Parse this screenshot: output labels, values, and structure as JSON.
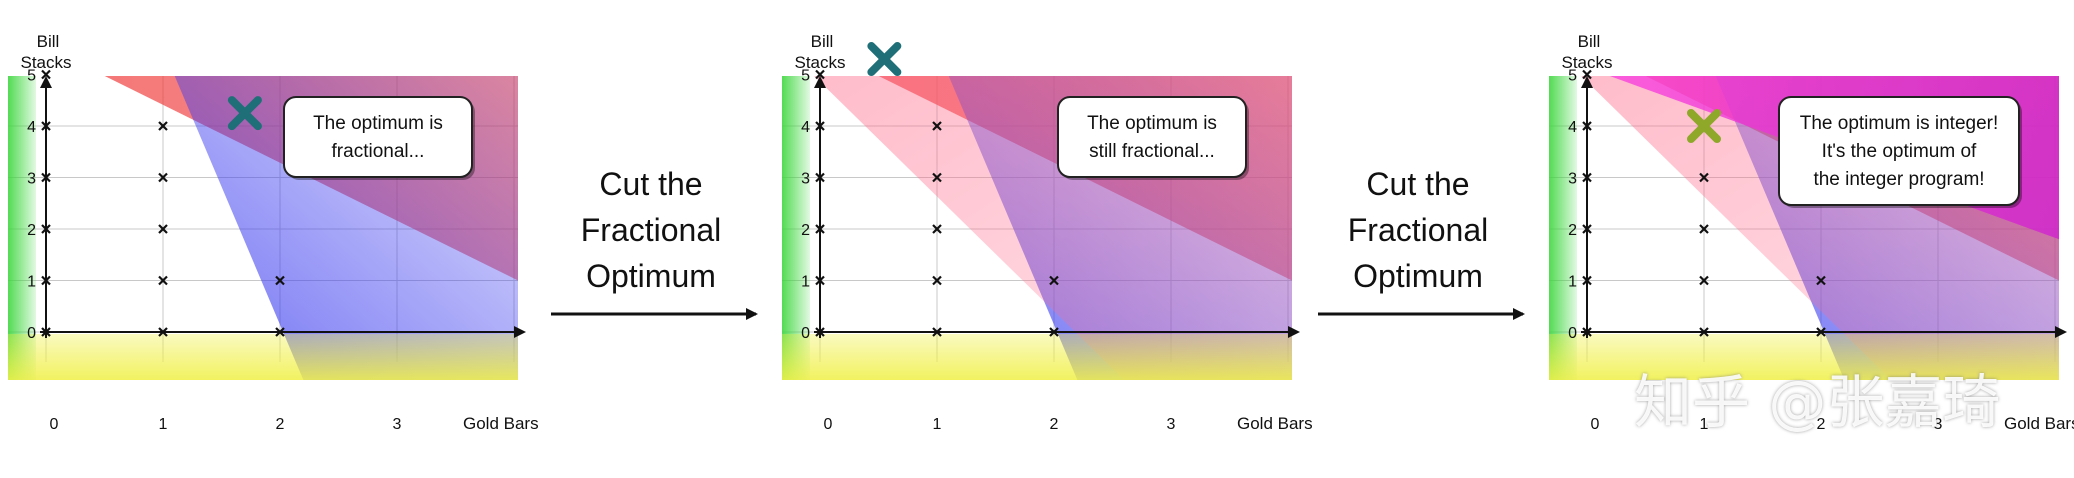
{
  "panels": [
    {
      "y_label_line1": "Bill",
      "y_label_line2": "Stacks",
      "x_label": "Gold Bars",
      "x_ticks": [
        "0",
        "1",
        "2",
        "3"
      ],
      "y_ticks": [
        "0",
        "1",
        "2",
        "3",
        "4",
        "5"
      ],
      "bubble_lines": [
        "The optimum is",
        "fractional..."
      ],
      "optimum": {
        "x": 1.7,
        "y": 4.25,
        "color": "#1f6f78"
      },
      "cut_regions": []
    },
    {
      "y_label_line1": "Bill",
      "y_label_line2": "Stacks",
      "x_label": "Gold Bars",
      "x_ticks": [
        "0",
        "1",
        "2",
        "3"
      ],
      "y_ticks": [
        "0",
        "1",
        "2",
        "3",
        "4",
        "5"
      ],
      "bubble_lines": [
        "The optimum is",
        "still fractional..."
      ],
      "optimum": {
        "x": 0.55,
        "y": 5.3,
        "color": "#1f6f78"
      },
      "cut_regions": [
        "cut1"
      ]
    },
    {
      "y_label_line1": "Bill",
      "y_label_line2": "Stacks",
      "x_label": "Gold Bars",
      "x_ticks": [
        "0",
        "1",
        "2",
        "3"
      ],
      "y_ticks": [
        "0",
        "1",
        "2",
        "3",
        "4",
        "5"
      ],
      "bubble_lines": [
        "The optimum is integer!",
        "It's the optimum of",
        "the integer program!"
      ],
      "optimum": {
        "x": 1,
        "y": 4,
        "color": "#8fa82a"
      },
      "cut_regions": [
        "cut1",
        "cut2"
      ]
    }
  ],
  "arrows": [
    {
      "lines": [
        "Cut the",
        "Fractional",
        "Optimum"
      ]
    },
    {
      "lines": [
        "Cut the",
        "Fractional",
        "Optimum"
      ]
    }
  ],
  "integer_points": [
    [
      0,
      0
    ],
    [
      0,
      1
    ],
    [
      0,
      2
    ],
    [
      0,
      3
    ],
    [
      0,
      4
    ],
    [
      0,
      5
    ],
    [
      1,
      0
    ],
    [
      1,
      1
    ],
    [
      1,
      2
    ],
    [
      1,
      3
    ],
    [
      1,
      4
    ],
    [
      2,
      0
    ],
    [
      2,
      1
    ]
  ],
  "watermark": "知乎 @张嘉琦",
  "colors": {
    "red": "#f03a3a",
    "blue": "#4a4af0",
    "pink": "#ff5fc8",
    "magenta": "#e024e0",
    "green": "#3fd73f",
    "yellow": "#f0f04a"
  }
}
